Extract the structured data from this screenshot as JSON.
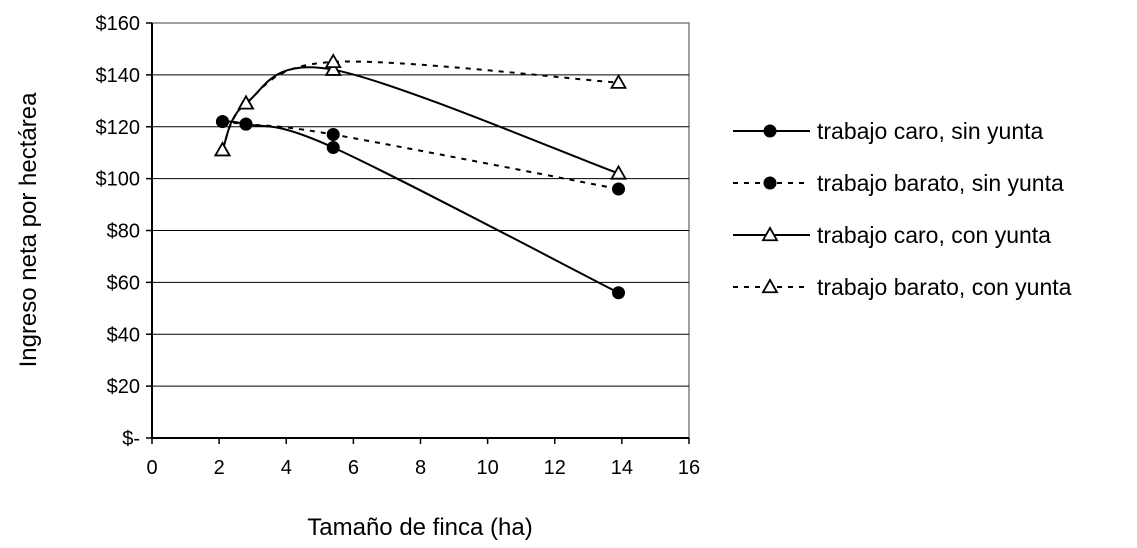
{
  "chart_data": {
    "type": "line",
    "xlabel": "Tamaño de finca (ha)",
    "ylabel": "Ingreso neta por hectárea",
    "xlim": [
      0,
      16
    ],
    "ylim": [
      0,
      160
    ],
    "x_ticks": [
      "0",
      "2",
      "4",
      "6",
      "8",
      "10",
      "12",
      "14",
      "16"
    ],
    "y_ticks": [
      "$-",
      "$20",
      "$40",
      "$60",
      "$80",
      "$100",
      "$120",
      "$140",
      "$160"
    ],
    "grid": "horizontal",
    "legend_position": "right",
    "smoothed": true,
    "series": [
      {
        "name": "trabajo caro, sin yunta",
        "marker": "circle",
        "line_style": "solid",
        "x": [
          2.1,
          2.8,
          5.4,
          13.9
        ],
        "y": [
          122,
          121,
          112,
          56
        ]
      },
      {
        "name": "trabajo barato, sin yunta",
        "marker": "circle",
        "line_style": "dashed",
        "x": [
          2.1,
          2.8,
          5.4,
          13.9
        ],
        "y": [
          122,
          121,
          117,
          96
        ]
      },
      {
        "name": "trabajo caro, con yunta",
        "marker": "triangle",
        "line_style": "solid",
        "x": [
          2.1,
          2.8,
          5.4,
          13.9
        ],
        "y": [
          111,
          129,
          142,
          102
        ]
      },
      {
        "name": "trabajo barato, con yunta",
        "marker": "triangle",
        "line_style": "dashed",
        "x": [
          2.1,
          2.8,
          5.4,
          13.9
        ],
        "y": [
          111,
          129,
          145,
          137
        ]
      }
    ]
  }
}
